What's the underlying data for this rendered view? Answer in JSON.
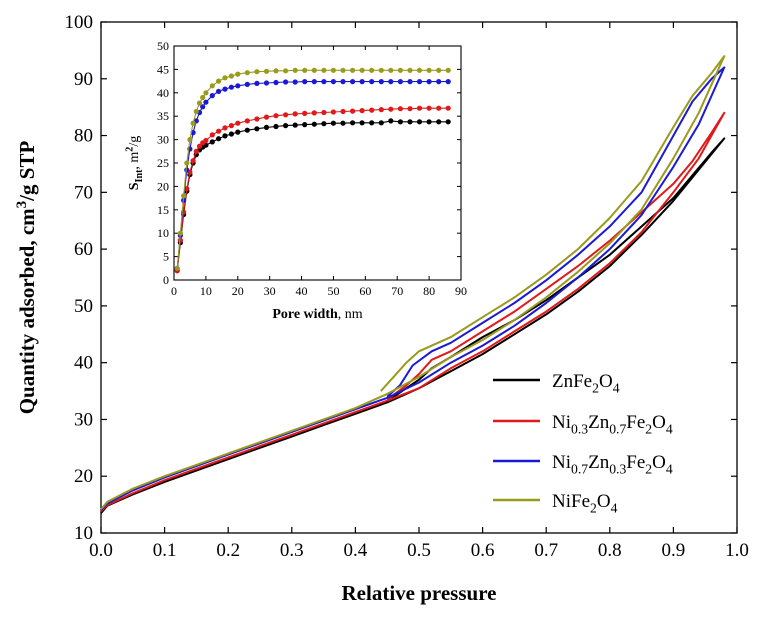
{
  "chart_data": [
    {
      "type": "line",
      "title": "",
      "xlabel": "Relative pressure",
      "ylabel": "Quantity adsorbed, cm³/g STP",
      "ylabel_parts": [
        "Quantity adsorbed, cm",
        "3",
        "/g STP"
      ],
      "xlim": [
        0.0,
        1.0
      ],
      "ylim": [
        10,
        100
      ],
      "x_ticks": [
        0.0,
        0.1,
        0.2,
        0.3,
        0.4,
        0.5,
        0.6,
        0.7,
        0.8,
        0.9,
        1.0
      ],
      "x_tick_labels": [
        "0.0",
        "0.1",
        "0.2",
        "0.3",
        "0.4",
        "0.5",
        "0.6",
        "0.7",
        "0.8",
        "0.9",
        "1.0"
      ],
      "y_ticks": [
        10,
        20,
        30,
        40,
        50,
        60,
        70,
        80,
        90,
        100
      ],
      "y_tick_labels": [
        "10",
        "20",
        "30",
        "40",
        "50",
        "60",
        "70",
        "80",
        "90",
        "100"
      ],
      "legend_position": "center-right",
      "series": [
        {
          "name": "ZnFe2O4",
          "name_parts": [
            [
              "ZnFe",
              ""
            ],
            [
              "2",
              "sub"
            ],
            [
              "O",
              ""
            ],
            [
              "4",
              "sub"
            ]
          ],
          "color": "#000000",
          "adsorption": [
            [
              0.0,
              13.5
            ],
            [
              0.01,
              14.8
            ],
            [
              0.05,
              16.8
            ],
            [
              0.1,
              19.0
            ],
            [
              0.15,
              21.0
            ],
            [
              0.2,
              23.0
            ],
            [
              0.25,
              25.0
            ],
            [
              0.3,
              27.0
            ],
            [
              0.35,
              29.0
            ],
            [
              0.4,
              31.0
            ],
            [
              0.45,
              33.0
            ],
            [
              0.5,
              35.5
            ],
            [
              0.55,
              38.5
            ],
            [
              0.6,
              41.5
            ],
            [
              0.65,
              45.0
            ],
            [
              0.7,
              48.5
            ],
            [
              0.75,
              52.5
            ],
            [
              0.8,
              57.0
            ],
            [
              0.85,
              62.5
            ],
            [
              0.9,
              68.5
            ],
            [
              0.94,
              74.0
            ],
            [
              0.98,
              79.5
            ]
          ],
          "desorption": [
            [
              0.98,
              79.5
            ],
            [
              0.96,
              77.0
            ],
            [
              0.93,
              73.0
            ],
            [
              0.9,
              69.0
            ],
            [
              0.85,
              64.0
            ],
            [
              0.8,
              59.0
            ],
            [
              0.75,
              55.0
            ],
            [
              0.7,
              51.0
            ],
            [
              0.65,
              47.5
            ],
            [
              0.6,
              44.5
            ],
            [
              0.55,
              41.0
            ],
            [
              0.52,
              39.0
            ],
            [
              0.5,
              37.0
            ],
            [
              0.48,
              35.5
            ],
            [
              0.45,
              33.2
            ]
          ]
        },
        {
          "name": "Ni0.3Zn0.7Fe2O4",
          "name_parts": [
            [
              "Ni",
              ""
            ],
            [
              "0.3",
              "sub"
            ],
            [
              "Zn",
              ""
            ],
            [
              "0.7",
              "sub"
            ],
            [
              "Fe",
              ""
            ],
            [
              "2",
              "sub"
            ],
            [
              "O",
              ""
            ],
            [
              "4",
              "sub"
            ]
          ],
          "color": "#e01a1a",
          "adsorption": [
            [
              0.0,
              13.8
            ],
            [
              0.01,
              14.9
            ],
            [
              0.05,
              17.0
            ],
            [
              0.1,
              19.3
            ],
            [
              0.15,
              21.3
            ],
            [
              0.2,
              23.3
            ],
            [
              0.25,
              25.3
            ],
            [
              0.3,
              27.3
            ],
            [
              0.35,
              29.3
            ],
            [
              0.4,
              31.3
            ],
            [
              0.45,
              33.3
            ],
            [
              0.5,
              35.5
            ],
            [
              0.55,
              39.0
            ],
            [
              0.6,
              42.0
            ],
            [
              0.65,
              45.5
            ],
            [
              0.7,
              49.0
            ],
            [
              0.75,
              53.0
            ],
            [
              0.8,
              57.5
            ],
            [
              0.85,
              63.0
            ],
            [
              0.9,
              70.0
            ],
            [
              0.94,
              76.0
            ],
            [
              0.98,
              84.0
            ]
          ],
          "desorption": [
            [
              0.98,
              84.0
            ],
            [
              0.96,
              80.5
            ],
            [
              0.93,
              75.5
            ],
            [
              0.9,
              71.5
            ],
            [
              0.85,
              66.5
            ],
            [
              0.8,
              61.5
            ],
            [
              0.75,
              57.0
            ],
            [
              0.7,
              53.0
            ],
            [
              0.65,
              49.0
            ],
            [
              0.6,
              45.5
            ],
            [
              0.55,
              42.0
            ],
            [
              0.52,
              40.5
            ],
            [
              0.5,
              38.0
            ],
            [
              0.48,
              36.0
            ],
            [
              0.45,
              33.5
            ]
          ]
        },
        {
          "name": "Ni0.7Zn0.3Fe2O4",
          "name_parts": [
            [
              "Ni",
              ""
            ],
            [
              "0.7",
              "sub"
            ],
            [
              "Zn",
              ""
            ],
            [
              "0.3",
              "sub"
            ],
            [
              "Fe",
              ""
            ],
            [
              "2",
              "sub"
            ],
            [
              "O",
              ""
            ],
            [
              "4",
              "sub"
            ]
          ],
          "color": "#1a1ad6",
          "adsorption": [
            [
              0.0,
              14.0
            ],
            [
              0.01,
              15.2
            ],
            [
              0.05,
              17.5
            ],
            [
              0.1,
              19.8
            ],
            [
              0.15,
              21.8
            ],
            [
              0.2,
              23.8
            ],
            [
              0.25,
              25.8
            ],
            [
              0.3,
              27.8
            ],
            [
              0.35,
              29.8
            ],
            [
              0.4,
              31.8
            ],
            [
              0.45,
              33.8
            ],
            [
              0.5,
              36.5
            ],
            [
              0.55,
              40.0
            ],
            [
              0.6,
              43.0
            ],
            [
              0.65,
              46.5
            ],
            [
              0.7,
              50.5
            ],
            [
              0.75,
              55.0
            ],
            [
              0.8,
              60.0
            ],
            [
              0.85,
              66.0
            ],
            [
              0.9,
              74.5
            ],
            [
              0.94,
              82.0
            ],
            [
              0.98,
              92.0
            ]
          ],
          "desorption": [
            [
              0.98,
              92.0
            ],
            [
              0.96,
              90.0
            ],
            [
              0.93,
              86.0
            ],
            [
              0.9,
              80.0
            ],
            [
              0.85,
              70.0
            ],
            [
              0.8,
              64.0
            ],
            [
              0.75,
              59.0
            ],
            [
              0.7,
              54.5
            ],
            [
              0.65,
              50.5
            ],
            [
              0.6,
              47.0
            ],
            [
              0.55,
              43.5
            ],
            [
              0.52,
              42.0
            ],
            [
              0.49,
              39.5
            ],
            [
              0.47,
              36.0
            ],
            [
              0.45,
              34.0
            ]
          ]
        },
        {
          "name": "NiFe2O4",
          "name_parts": [
            [
              "NiFe",
              ""
            ],
            [
              "2",
              "sub"
            ],
            [
              "O",
              ""
            ],
            [
              "4",
              "sub"
            ]
          ],
          "color": "#9a9a1c",
          "adsorption": [
            [
              0.0,
              14.2
            ],
            [
              0.01,
              15.5
            ],
            [
              0.05,
              17.8
            ],
            [
              0.1,
              20.0
            ],
            [
              0.15,
              22.0
            ],
            [
              0.2,
              24.0
            ],
            [
              0.25,
              26.0
            ],
            [
              0.3,
              28.0
            ],
            [
              0.35,
              30.0
            ],
            [
              0.4,
              32.0
            ],
            [
              0.45,
              34.5
            ],
            [
              0.5,
              37.5
            ],
            [
              0.55,
              41.0
            ],
            [
              0.6,
              44.0
            ],
            [
              0.65,
              47.5
            ],
            [
              0.7,
              51.5
            ],
            [
              0.75,
              56.0
            ],
            [
              0.8,
              61.0
            ],
            [
              0.85,
              67.0
            ],
            [
              0.9,
              76.0
            ],
            [
              0.94,
              84.0
            ],
            [
              0.98,
              94.0
            ]
          ],
          "desorption": [
            [
              0.98,
              94.0
            ],
            [
              0.96,
              91.0
            ],
            [
              0.93,
              87.0
            ],
            [
              0.9,
              81.5
            ],
            [
              0.85,
              72.0
            ],
            [
              0.8,
              65.5
            ],
            [
              0.75,
              60.0
            ],
            [
              0.7,
              55.5
            ],
            [
              0.65,
              51.5
            ],
            [
              0.6,
              48.0
            ],
            [
              0.55,
              44.5
            ],
            [
              0.5,
              42.0
            ],
            [
              0.48,
              40.0
            ],
            [
              0.46,
              37.5
            ],
            [
              0.44,
              35.0
            ]
          ]
        }
      ]
    },
    {
      "type": "scatter",
      "title": "",
      "xlabel": "Pore width, nm",
      "xlabel_parts": [
        [
          "Pore width",
          "bold"
        ],
        [
          ", nm",
          "normal"
        ]
      ],
      "ylabel": "S_Int, m²/g",
      "ylabel_parts": [
        [
          "S",
          "bold"
        ],
        [
          "Int",
          "sub-bold"
        ],
        [
          ", m",
          "normal"
        ],
        [
          "2",
          "sup"
        ],
        [
          "/g",
          "normal"
        ]
      ],
      "xlim": [
        0,
        90
      ],
      "ylim": [
        0,
        50
      ],
      "x_ticks": [
        0,
        10,
        20,
        30,
        40,
        50,
        60,
        70,
        80,
        90
      ],
      "x_tick_labels": [
        "0",
        "10",
        "20",
        "30",
        "40",
        "50",
        "60",
        "70",
        "80",
        "90"
      ],
      "y_ticks": [
        0,
        5,
        10,
        15,
        20,
        25,
        30,
        35,
        40,
        45,
        50
      ],
      "y_tick_labels": [
        "0",
        "5",
        "10",
        "15",
        "20",
        "25",
        "30",
        "35",
        "40",
        "45",
        "50"
      ],
      "x": [
        1.0,
        2.0,
        3.0,
        4.0,
        5.0,
        6.0,
        7.0,
        8.0,
        9.0,
        10.0,
        12.0,
        14.0,
        16.0,
        18.0,
        20.0,
        23.0,
        26.0,
        29.0,
        32.0,
        35.0,
        38.0,
        41.0,
        44.0,
        47.0,
        50.0,
        53.0,
        56.0,
        59.0,
        62.0,
        65.0,
        68.0,
        71.0,
        74.0,
        77.0,
        80.0,
        83.0,
        86.0
      ],
      "series": [
        {
          "name": "ZnFe2O4",
          "color": "#000000",
          "values": [
            2.0,
            8.0,
            14.0,
            19.0,
            22.5,
            25.0,
            26.8,
            27.8,
            28.4,
            28.8,
            29.5,
            30.2,
            30.8,
            31.2,
            31.6,
            32.0,
            32.3,
            32.6,
            32.8,
            33.0,
            33.1,
            33.2,
            33.3,
            33.4,
            33.5,
            33.5,
            33.6,
            33.6,
            33.6,
            33.6,
            34.0,
            33.8,
            33.8,
            33.8,
            33.8,
            33.8,
            33.8
          ]
        },
        {
          "name": "Ni0.3Zn0.7Fe2O4",
          "color": "#e01a1a",
          "values": [
            2.0,
            8.5,
            14.5,
            19.5,
            23.0,
            25.5,
            27.5,
            28.6,
            29.3,
            29.8,
            31.0,
            31.8,
            32.5,
            33.0,
            33.5,
            34.0,
            34.4,
            34.8,
            35.1,
            35.3,
            35.5,
            35.6,
            35.7,
            35.8,
            35.9,
            36.0,
            36.1,
            36.2,
            36.3,
            36.4,
            36.5,
            36.6,
            36.6,
            36.7,
            36.7,
            36.7,
            36.7
          ]
        },
        {
          "name": "Ni0.7Zn0.3Fe2O4",
          "color": "#1a1ad6",
          "values": [
            2.5,
            9.5,
            17.0,
            23.5,
            28.0,
            31.5,
            34.0,
            35.8,
            37.0,
            38.0,
            39.4,
            40.3,
            40.8,
            41.2,
            41.5,
            41.8,
            42.0,
            42.1,
            42.2,
            42.3,
            42.3,
            42.4,
            42.4,
            42.4,
            42.4,
            42.4,
            42.4,
            42.4,
            42.4,
            42.4,
            42.4,
            42.4,
            42.4,
            42.4,
            42.4,
            42.4,
            42.4
          ]
        },
        {
          "name": "NiFe2O4",
          "color": "#9a9a1c",
          "values": [
            2.5,
            10.0,
            18.0,
            25.0,
            30.0,
            33.5,
            36.0,
            37.8,
            39.0,
            40.0,
            41.5,
            42.5,
            43.2,
            43.6,
            44.0,
            44.3,
            44.5,
            44.6,
            44.7,
            44.7,
            44.8,
            44.8,
            44.8,
            44.8,
            44.8,
            44.8,
            44.8,
            44.8,
            44.8,
            44.8,
            44.8,
            44.8,
            44.8,
            44.8,
            44.8,
            44.8,
            44.8
          ]
        }
      ]
    }
  ]
}
